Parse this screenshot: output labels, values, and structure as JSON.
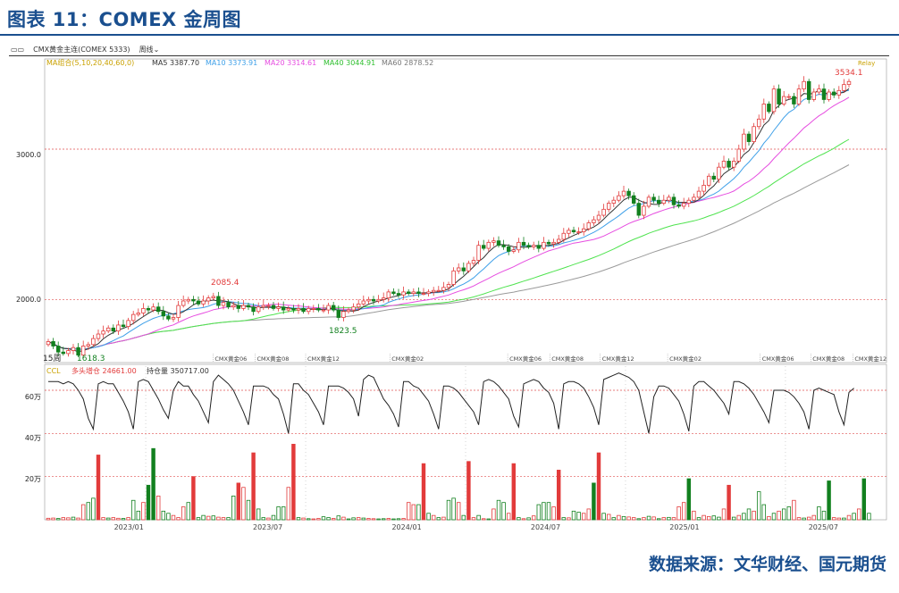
{
  "figure": {
    "title": "图表 11：COMEX 金周图",
    "source": "数据来源：文华财经、国元期货"
  },
  "toolbar": {
    "symbol_label": "CMX黄金主连(COMEX 5333)",
    "period_label": "周线"
  },
  "chart_data": [
    {
      "type": "candlestick",
      "ylim": [
        1580,
        3600
      ],
      "y_ticks": [
        3000,
        2000
      ],
      "y_tick_labels": [
        "3000.0",
        "2000.0"
      ],
      "legend": {
        "group_label": "MA组合(5,10,20,40,60,0)",
        "ma5": "MA5 3387.70",
        "ma10": "MA10 3373.91",
        "ma20": "MA20 3314.61",
        "ma40": "MA40 3044.91",
        "ma60": "MA60 2878.52"
      },
      "annotations": {
        "high_2023": "2085.4",
        "low_2023": "1823.5",
        "low_2022": "1618.3",
        "high_2025": "3534.1",
        "corner": "Relay",
        "corner_left": "15周"
      },
      "contract_labels": [
        "CMX黄金06",
        "CMX黄金08",
        "CMX黄金12",
        "CMX黄金02",
        "CMX黄金06",
        "CMX黄金08",
        "CMX黄金12",
        "CMX黄金02",
        "CMX黄金06",
        "CMX黄金08",
        "CMX黄金12"
      ],
      "closes": [
        1720,
        1690,
        1650,
        1640,
        1660,
        1680,
        1630,
        1690,
        1700,
        1740,
        1770,
        1790,
        1810,
        1790,
        1830,
        1820,
        1860,
        1900,
        1910,
        1940,
        1930,
        1950,
        1920,
        1890,
        1870,
        1880,
        1960,
        1990,
        2000,
        1990,
        1970,
        1990,
        2010,
        2020,
        1960,
        1980,
        1950,
        1960,
        1940,
        1960,
        1950,
        1920,
        1950,
        1960,
        1960,
        1940,
        1950,
        1930,
        1940,
        1930,
        1940,
        1920,
        1940,
        1940,
        1930,
        1930,
        1960,
        1930,
        1880,
        1920,
        1930,
        1950,
        1970,
        1990,
        2000,
        1990,
        2000,
        2010,
        2050,
        2040,
        2030,
        2050,
        2040,
        2050,
        2040,
        2040,
        2050,
        2060,
        2060,
        2080,
        2100,
        2190,
        2210,
        2190,
        2240,
        2260,
        2360,
        2340,
        2380,
        2390,
        2360,
        2350,
        2320,
        2330,
        2380,
        2360,
        2350,
        2360,
        2340,
        2380,
        2370,
        2380,
        2400,
        2440,
        2460,
        2450,
        2450,
        2470,
        2510,
        2530,
        2560,
        2600,
        2640,
        2660,
        2690,
        2720,
        2690,
        2640,
        2560,
        2620,
        2680,
        2660,
        2640,
        2660,
        2680,
        2630,
        2620,
        2640,
        2660,
        2680,
        2720,
        2760,
        2820,
        2800,
        2880,
        2920,
        2880,
        2920,
        3000,
        3100,
        3050,
        3150,
        3200,
        3300,
        3250,
        3400,
        3300,
        3350,
        3350,
        3300,
        3400,
        3450,
        3330,
        3380,
        3400,
        3330,
        3380,
        3360,
        3390,
        3430,
        3450
      ],
      "x_labels": [
        "2023/01",
        "2023/07",
        "2024/01",
        "2024/07",
        "2025/01",
        "2025/07"
      ]
    },
    {
      "type": "line",
      "label": "CCL",
      "legend": {
        "long_add": "多头增仓 24661.00",
        "oi": "持仓量 350717.00"
      },
      "ylim": [
        0,
        720000
      ],
      "y_ticks": [
        600000,
        400000,
        200000
      ],
      "y_tick_labels": [
        "60万",
        "40万",
        "20万"
      ],
      "values": [
        640000,
        640000,
        640000,
        630000,
        640000,
        630000,
        600000,
        560000,
        470000,
        420000,
        630000,
        640000,
        630000,
        630000,
        590000,
        550000,
        500000,
        420000,
        640000,
        650000,
        640000,
        600000,
        560000,
        510000,
        470000,
        600000,
        640000,
        620000,
        620000,
        580000,
        550000,
        500000,
        450000,
        640000,
        670000,
        650000,
        630000,
        600000,
        550000,
        500000,
        440000,
        620000,
        620000,
        620000,
        610000,
        580000,
        560000,
        490000,
        400000,
        630000,
        630000,
        600000,
        580000,
        540000,
        500000,
        440000,
        620000,
        620000,
        620000,
        610000,
        590000,
        560000,
        480000,
        650000,
        670000,
        660000,
        610000,
        560000,
        530000,
        490000,
        430000,
        640000,
        640000,
        620000,
        610000,
        580000,
        550000,
        490000,
        420000,
        620000,
        620000,
        610000,
        590000,
        560000,
        530000,
        500000,
        440000,
        640000,
        650000,
        640000,
        620000,
        590000,
        560000,
        480000,
        430000,
        630000,
        640000,
        650000,
        640000,
        610000,
        590000,
        540000,
        420000,
        630000,
        640000,
        640000,
        630000,
        610000,
        570000,
        520000,
        440000,
        650000,
        660000,
        670000,
        680000,
        670000,
        660000,
        640000,
        600000,
        500000,
        400000,
        570000,
        620000,
        620000,
        610000,
        580000,
        550000,
        490000,
        410000,
        620000,
        640000,
        640000,
        620000,
        600000,
        570000,
        540000,
        490000,
        640000,
        640000,
        630000,
        610000,
        580000,
        540000,
        500000,
        450000,
        600000,
        600000,
        600000,
        590000,
        570000,
        540000,
        500000,
        420000,
        600000,
        610000,
        600000,
        590000,
        580000,
        500000,
        440000,
        590000,
        610000
      ]
    },
    {
      "type": "bar",
      "values": [
        7000,
        8000,
        6000,
        10000,
        9000,
        12000,
        8000,
        70000,
        80000,
        100000,
        300000,
        10000,
        8000,
        10000,
        7000,
        6000,
        10000,
        90000,
        40000,
        80000,
        160000,
        330000,
        110000,
        40000,
        30000,
        20000,
        10000,
        60000,
        80000,
        200000,
        10000,
        20000,
        16000,
        18000,
        12000,
        10000,
        10000,
        110000,
        170000,
        150000,
        90000,
        310000,
        50000,
        10000,
        8000,
        20000,
        60000,
        60000,
        150000,
        350000,
        10000,
        8000,
        5000,
        4000,
        6000,
        14000,
        10000,
        6000,
        18000,
        12000,
        4000,
        9000,
        10000,
        8000,
        6000,
        5000,
        4000,
        5000,
        6000,
        4000,
        5000,
        6000,
        80000,
        70000,
        70000,
        260000,
        30000,
        20000,
        10000,
        12000,
        90000,
        100000,
        80000,
        20000,
        270000,
        10000,
        20000,
        5000,
        4000,
        50000,
        90000,
        80000,
        30000,
        260000,
        10000,
        5000,
        9000,
        18000,
        70000,
        80000,
        80000,
        60000,
        230000,
        10000,
        9000,
        40000,
        35000,
        30000,
        50000,
        170000,
        310000,
        30000,
        25000,
        10000,
        20000,
        15000,
        13000,
        10000,
        5000,
        10000,
        16000,
        13000,
        5000,
        10000,
        11000,
        10000,
        60000,
        80000,
        190000,
        40000,
        10000,
        20000,
        15000,
        18000,
        12000,
        50000,
        160000,
        12000,
        20000,
        30000,
        50000,
        40000,
        130000,
        70000,
        15000,
        30000,
        40000,
        50000,
        60000,
        90000,
        10000,
        8000,
        12000,
        20000,
        60000,
        40000,
        180000,
        10000,
        8000,
        8000,
        20000,
        30000,
        50000,
        190000,
        30000
      ],
      "colors": [
        "r",
        "r",
        "g",
        "r",
        "r",
        "g",
        "r",
        "r",
        "g",
        "g",
        "r",
        "r",
        "g",
        "r",
        "r",
        "g",
        "r",
        "g",
        "g",
        "r",
        "g",
        "g",
        "r",
        "g",
        "g",
        "r",
        "r",
        "r",
        "g",
        "r",
        "g",
        "g",
        "r",
        "g",
        "r",
        "r",
        "g",
        "g",
        "r",
        "r",
        "g",
        "r",
        "g",
        "g",
        "r",
        "g",
        "g",
        "g",
        "r",
        "r",
        "g",
        "r",
        "g",
        "r",
        "r",
        "g",
        "g",
        "r",
        "g",
        "r",
        "g",
        "g",
        "r",
        "g",
        "r",
        "r",
        "g",
        "g",
        "r",
        "g",
        "g",
        "r",
        "r",
        "r",
        "g",
        "r",
        "g",
        "r",
        "g",
        "r",
        "g",
        "g",
        "r",
        "g",
        "r",
        "r",
        "g",
        "r",
        "g",
        "r",
        "g",
        "g",
        "r",
        "r",
        "g",
        "r",
        "g",
        "r",
        "g",
        "g",
        "g",
        "r",
        "r",
        "g",
        "r",
        "g",
        "g",
        "r",
        "r",
        "g",
        "r",
        "g",
        "r",
        "g",
        "r",
        "g",
        "r",
        "r",
        "g",
        "r",
        "g",
        "r",
        "g",
        "r",
        "g",
        "r",
        "r",
        "r",
        "g",
        "r",
        "g",
        "r",
        "r",
        "g",
        "g",
        "r",
        "r",
        "g",
        "r",
        "g",
        "g",
        "r",
        "g",
        "g",
        "r",
        "g",
        "r",
        "g",
        "g",
        "r",
        "r",
        "g",
        "r",
        "r",
        "g",
        "g",
        "g",
        "r",
        "r",
        "g",
        "r",
        "g",
        "r",
        "g",
        "g",
        "r",
        "g"
      ]
    }
  ],
  "colors": {
    "title": "#1a4f8f",
    "up": "#e23b3b",
    "up_light": "#f4a3a3",
    "down": "#12801f",
    "down_light": "#8fd17c",
    "ma5": "#333333",
    "ma10": "#3fa0e8",
    "ma20": "#e64de0",
    "ma40": "#4fe34f",
    "ma60": "#9a9a9a",
    "ccl": "#222222",
    "grid": "#e05050"
  }
}
